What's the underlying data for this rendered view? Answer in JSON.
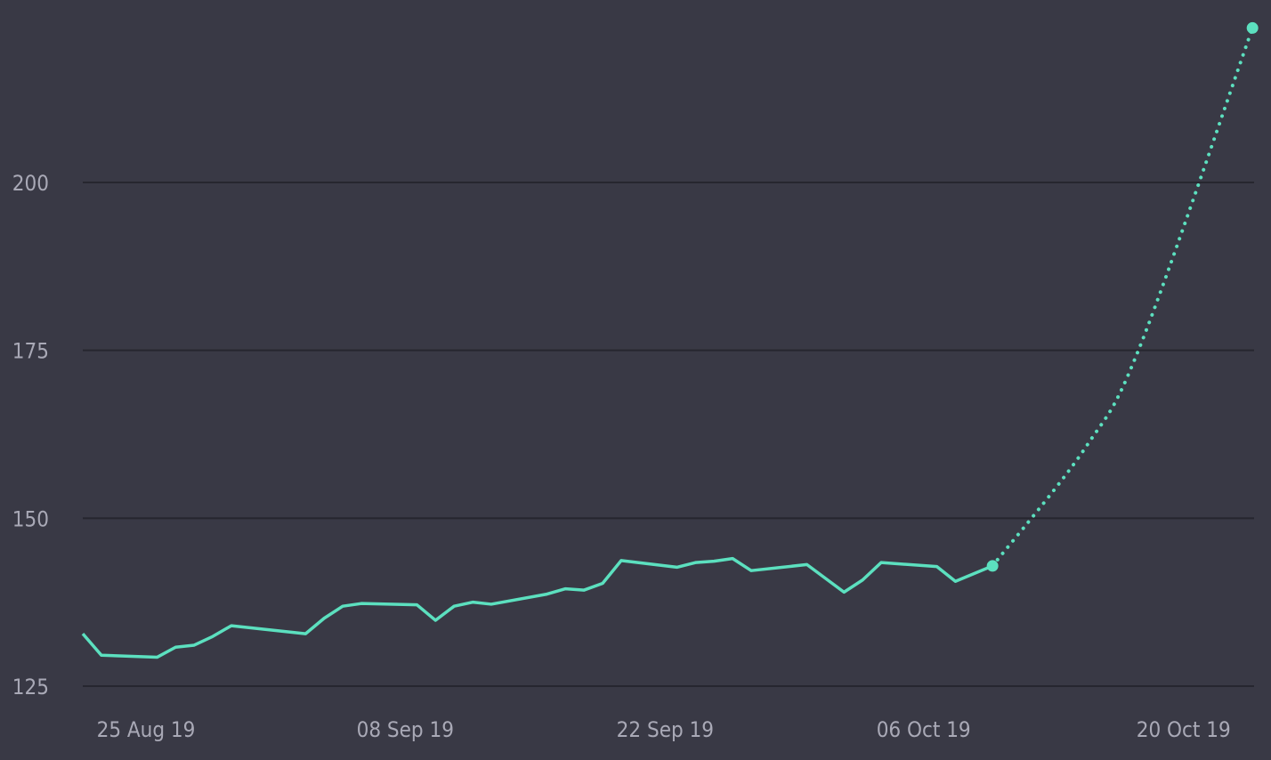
{
  "chart_data": {
    "type": "line",
    "title": "",
    "xlabel": "",
    "ylabel": "",
    "x_ticks": [
      "25 Aug 19",
      "08 Sep 19",
      "22 Sep 19",
      "06 Oct 19",
      "20 Oct 19"
    ],
    "y_ticks": [
      125,
      150,
      175,
      200
    ],
    "ylim": [
      125,
      230
    ],
    "xlim": [
      "2019-08-22",
      "2019-10-25"
    ],
    "grid": "horizontal",
    "colors": {
      "background": "#393945",
      "line": "#5ce0bf",
      "grid": "#26262f",
      "tick_text": "#a9a9b6"
    },
    "series": [
      {
        "style": "solid",
        "points": [
          {
            "x": "2019-08-22",
            "y": 132.8
          },
          {
            "x": "2019-08-23",
            "y": 129.6
          },
          {
            "x": "2019-08-26",
            "y": 129.3
          },
          {
            "x": "2019-08-27",
            "y": 130.8
          },
          {
            "x": "2019-08-28",
            "y": 131.1
          },
          {
            "x": "2019-08-29",
            "y": 132.4
          },
          {
            "x": "2019-08-30",
            "y": 134.0
          },
          {
            "x": "2019-09-03",
            "y": 132.8
          },
          {
            "x": "2019-09-04",
            "y": 135.1
          },
          {
            "x": "2019-09-05",
            "y": 136.9
          },
          {
            "x": "2019-09-06",
            "y": 137.3
          },
          {
            "x": "2019-09-09",
            "y": 137.1
          },
          {
            "x": "2019-09-10",
            "y": 134.8
          },
          {
            "x": "2019-09-11",
            "y": 136.9
          },
          {
            "x": "2019-09-12",
            "y": 137.5
          },
          {
            "x": "2019-09-13",
            "y": 137.2
          },
          {
            "x": "2019-09-16",
            "y": 138.7
          },
          {
            "x": "2019-09-17",
            "y": 139.5
          },
          {
            "x": "2019-09-18",
            "y": 139.3
          },
          {
            "x": "2019-09-19",
            "y": 140.3
          },
          {
            "x": "2019-09-20",
            "y": 143.7
          },
          {
            "x": "2019-09-23",
            "y": 142.7
          },
          {
            "x": "2019-09-24",
            "y": 143.4
          },
          {
            "x": "2019-09-25",
            "y": 143.6
          },
          {
            "x": "2019-09-26",
            "y": 144.0
          },
          {
            "x": "2019-09-27",
            "y": 142.2
          },
          {
            "x": "2019-09-30",
            "y": 143.1
          },
          {
            "x": "2019-10-02",
            "y": 139.0
          },
          {
            "x": "2019-10-03",
            "y": 140.8
          },
          {
            "x": "2019-10-04",
            "y": 143.4
          },
          {
            "x": "2019-10-07",
            "y": 142.8
          },
          {
            "x": "2019-10-08",
            "y": 140.6
          },
          {
            "x": "2019-10-10",
            "y": 142.9
          }
        ]
      },
      {
        "style": "dotted",
        "points": [
          {
            "x": "2019-10-10",
            "y": 142.9
          },
          {
            "x": "2019-10-15",
            "y": 160.5
          },
          {
            "x": "2019-10-18",
            "y": 176.0
          },
          {
            "x": "2019-10-24",
            "y": 223.0
          }
        ]
      }
    ]
  }
}
